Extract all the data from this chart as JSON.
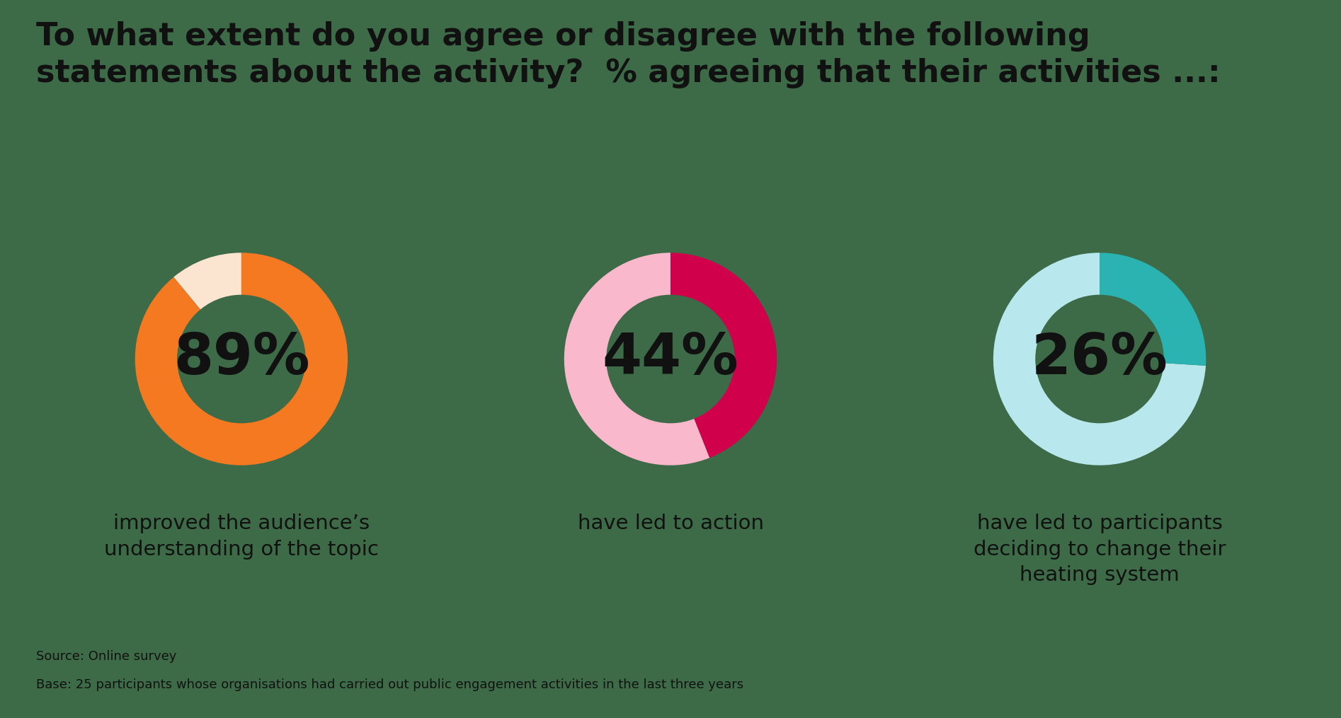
{
  "title": "To what extent do you agree or disagree with the following\nstatements about the activity?  % agreeing that their activities ...:",
  "title_fontsize": 32,
  "title_fontweight": "bold",
  "background_color": "#3d6b47",
  "charts": [
    {
      "value": 89,
      "label": "improved the audience’s\nunderstanding of the topic",
      "color_main": "#f47920",
      "color_secondary": "#fce5d0"
    },
    {
      "value": 44,
      "label": "have led to action",
      "color_main": "#d0004b",
      "color_secondary": "#f9b8cc"
    },
    {
      "value": 26,
      "label": "have led to participants\ndeciding to change their\nheating system",
      "color_main": "#2ab3b1",
      "color_secondary": "#b8e8ed"
    }
  ],
  "source_text": "Source: Online survey",
  "base_text": "Base: 25 participants whose organisations had carried out public engagement activities in the last three years",
  "text_color": "#111111",
  "label_fontsize": 21,
  "value_fontsize": 58,
  "source_fontsize": 13,
  "base_fontsize": 13,
  "donut_outer_r": 1.0,
  "donut_inner_r": 0.6
}
